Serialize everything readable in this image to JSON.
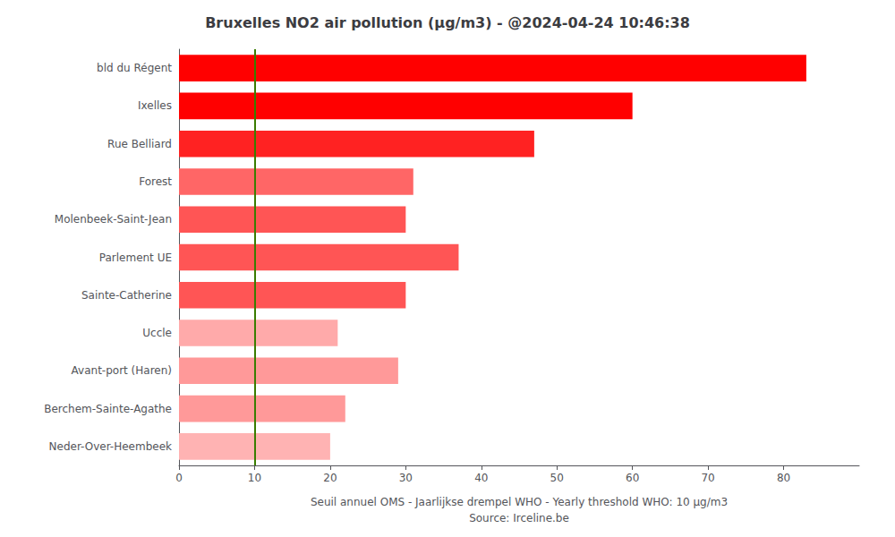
{
  "chart_data": {
    "type": "bar",
    "orientation": "horizontal",
    "title": "Bruxelles NO2 air pollution (μg/m3) - @2024-04-24 10:46:38",
    "xlabel": "Seuil annuel OMS - Jaarlijkse drempel WHO - Yearly threshold WHO: 10 μg/m3\nSource: Irceline.be",
    "categories": [
      "Neder-Over-Heembeek",
      "Berchem-Sainte-Agathe",
      "Avant-port (Haren)",
      "Uccle",
      "Sainte-Catherine",
      "Parlement UE",
      "Molenbeek-Saint-Jean",
      "Forest",
      "Rue Belliard",
      "Ixelles",
      "bld du Régent"
    ],
    "values": [
      20,
      22,
      29,
      21,
      30,
      37,
      30,
      31,
      47,
      60,
      83
    ],
    "colors": [
      "#ffb3b3",
      "#ff9999",
      "#ff9999",
      "#ffaaaa",
      "#ff5555",
      "#ff5555",
      "#ff5555",
      "#ff6666",
      "#ff2222",
      "#ff0000",
      "#ff0000"
    ],
    "threshold": {
      "value": 10,
      "color": "#3a7d00"
    },
    "xlim": [
      0,
      90
    ],
    "xticks": [
      0,
      10,
      20,
      30,
      40,
      50,
      60,
      70,
      80
    ],
    "grid": false
  }
}
